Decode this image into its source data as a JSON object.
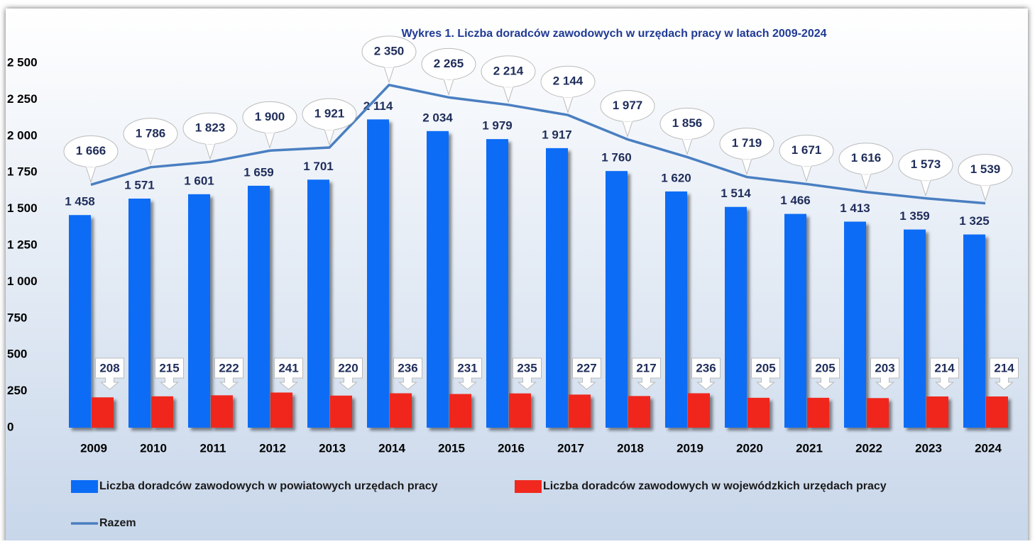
{
  "chart_data": {
    "type": "bar-line",
    "title": "Wykres 1. Liczba doradców zawodowych w urzędach pracy w latach 2009-2024",
    "categories": [
      "2009",
      "2010",
      "2011",
      "2012",
      "2013",
      "2014",
      "2015",
      "2016",
      "2017",
      "2018",
      "2019",
      "2020",
      "2021",
      "2022",
      "2023",
      "2024"
    ],
    "series": [
      {
        "name": "Liczba doradców zawodowych w powiatowych urzędach pracy",
        "color": "#0a6cf5",
        "kind": "bar",
        "values": [
          1458,
          1571,
          1601,
          1659,
          1701,
          2114,
          2034,
          1979,
          1917,
          1760,
          1620,
          1514,
          1466,
          1413,
          1359,
          1325
        ],
        "value_labels": [
          "1 458",
          "1 571",
          "1 601",
          "1 659",
          "1 701",
          "2 114",
          "2 034",
          "1 979",
          "1 917",
          "1 760",
          "1 620",
          "1 514",
          "1 466",
          "1 413",
          "1 359",
          "1 325"
        ]
      },
      {
        "name": "Liczba doradców zawodowych w wojewódzkich urzędach pracy",
        "color": "#f0281e",
        "kind": "bar",
        "values": [
          208,
          215,
          222,
          241,
          220,
          236,
          231,
          235,
          227,
          217,
          236,
          205,
          205,
          203,
          214,
          214
        ],
        "value_labels": [
          "208",
          "215",
          "222",
          "241",
          "220",
          "236",
          "231",
          "235",
          "227",
          "217",
          "236",
          "205",
          "205",
          "203",
          "214",
          "214"
        ]
      },
      {
        "name": "Razem",
        "color": "#4a7fc1",
        "kind": "line",
        "values": [
          1666,
          1786,
          1823,
          1900,
          1921,
          2350,
          2265,
          2214,
          2144,
          1977,
          1856,
          1719,
          1671,
          1616,
          1573,
          1539
        ],
        "value_labels": [
          "1 666",
          "1 786",
          "1 823",
          "1 900",
          "1 921",
          "2 350",
          "2 265",
          "2 214",
          "2 144",
          "1 977",
          "1 856",
          "1 719",
          "1 671",
          "1 616",
          "1 573",
          "1 539"
        ]
      }
    ],
    "ylim": [
      0,
      2500
    ],
    "yticks": [
      0,
      250,
      500,
      750,
      {
        "value": 1000,
        "label": "1 000"
      },
      {
        "value": 1250,
        "label": "1 250"
      },
      {
        "value": 1500,
        "label": "1 500"
      },
      {
        "value": 1750,
        "label": "1 750"
      },
      {
        "value": 2000,
        "label": "2 000"
      },
      {
        "value": 2250,
        "label": "2 250"
      },
      {
        "value": 2500,
        "label": "2 500"
      }
    ],
    "grid": false,
    "legend": "bottom"
  }
}
